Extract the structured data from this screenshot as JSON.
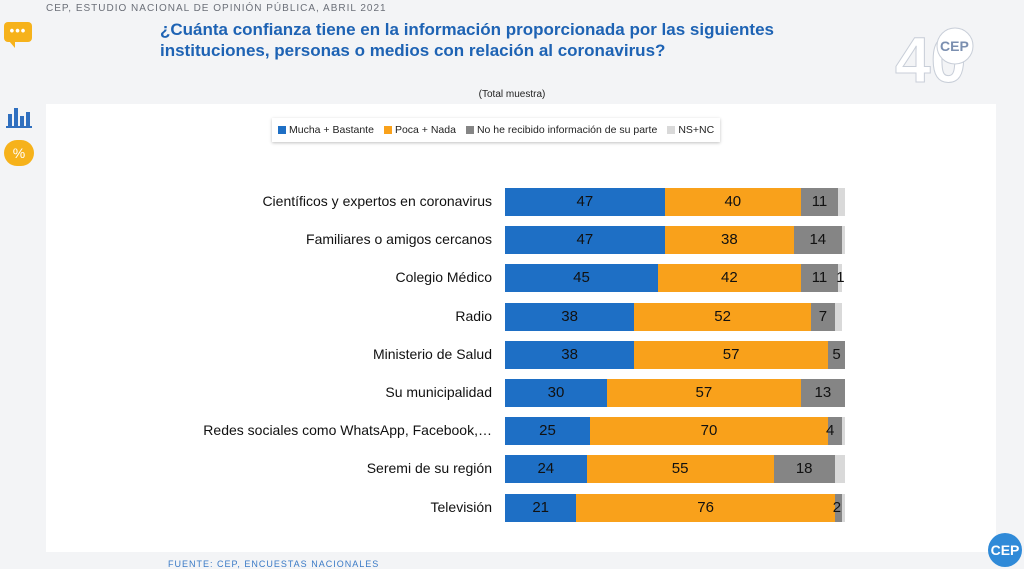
{
  "header": {
    "top_label": "CEP, ESTUDIO NACIONAL DE OPINIÓN PÚBLICA, ABRIL 2021",
    "question": "¿Cuánta confianza tiene en la información proporcionada por las siguientes instituciones, personas o medios con relación al coronavirus?",
    "logo_text": "CEP",
    "logo_number": "40"
  },
  "sidebar": {
    "chat_glyph": "•••",
    "percent_label": "%"
  },
  "footer": {
    "source": "FUENTE: CEP, ENCUESTAS NACIONALES",
    "badge": "CEP"
  },
  "colors": {
    "mucha": "#1e6fc5",
    "poca": "#f9a11b",
    "no_info": "#858585",
    "nsnc": "#d9d9d9"
  },
  "chart_data": {
    "type": "bar",
    "orientation": "horizontal",
    "stacked": true,
    "subtitle": "(Total muestra)",
    "categories": [
      "Científicos y expertos en coronavirus",
      "Familiares o amigos cercanos",
      "Colegio Médico",
      "Radio",
      "Ministerio de Salud",
      "Su municipalidad",
      "Redes sociales como WhatsApp, Facebook,…",
      "Seremi de su región",
      "Televisión"
    ],
    "series": [
      {
        "name": "Mucha + Bastante",
        "values": [
          47,
          47,
          45,
          38,
          38,
          30,
          25,
          24,
          21
        ],
        "labels": [
          "47",
          "47",
          "45",
          "38",
          "38",
          "30",
          "25",
          "24",
          "21"
        ]
      },
      {
        "name": "Poca + Nada",
        "values": [
          40,
          38,
          42,
          52,
          57,
          57,
          70,
          55,
          76
        ],
        "labels": [
          "40",
          "38",
          "42",
          "52",
          "57",
          "57",
          "70",
          "55",
          "76"
        ]
      },
      {
        "name": "No he recibido información de su parte",
        "values": [
          11,
          14,
          11,
          7,
          5,
          13,
          4,
          18,
          2
        ],
        "labels": [
          "11",
          "14",
          "11",
          "7",
          "5",
          "13",
          "4",
          "18",
          "2"
        ]
      },
      {
        "name": "NS+NC",
        "values": [
          2,
          1,
          1,
          2,
          0,
          0,
          1,
          3,
          1
        ],
        "labels": [
          "",
          "",
          "1",
          "",
          "",
          "",
          "",
          "",
          ""
        ]
      }
    ],
    "xlim": [
      0,
      100
    ],
    "legend_position": "top-center",
    "grid": false
  }
}
